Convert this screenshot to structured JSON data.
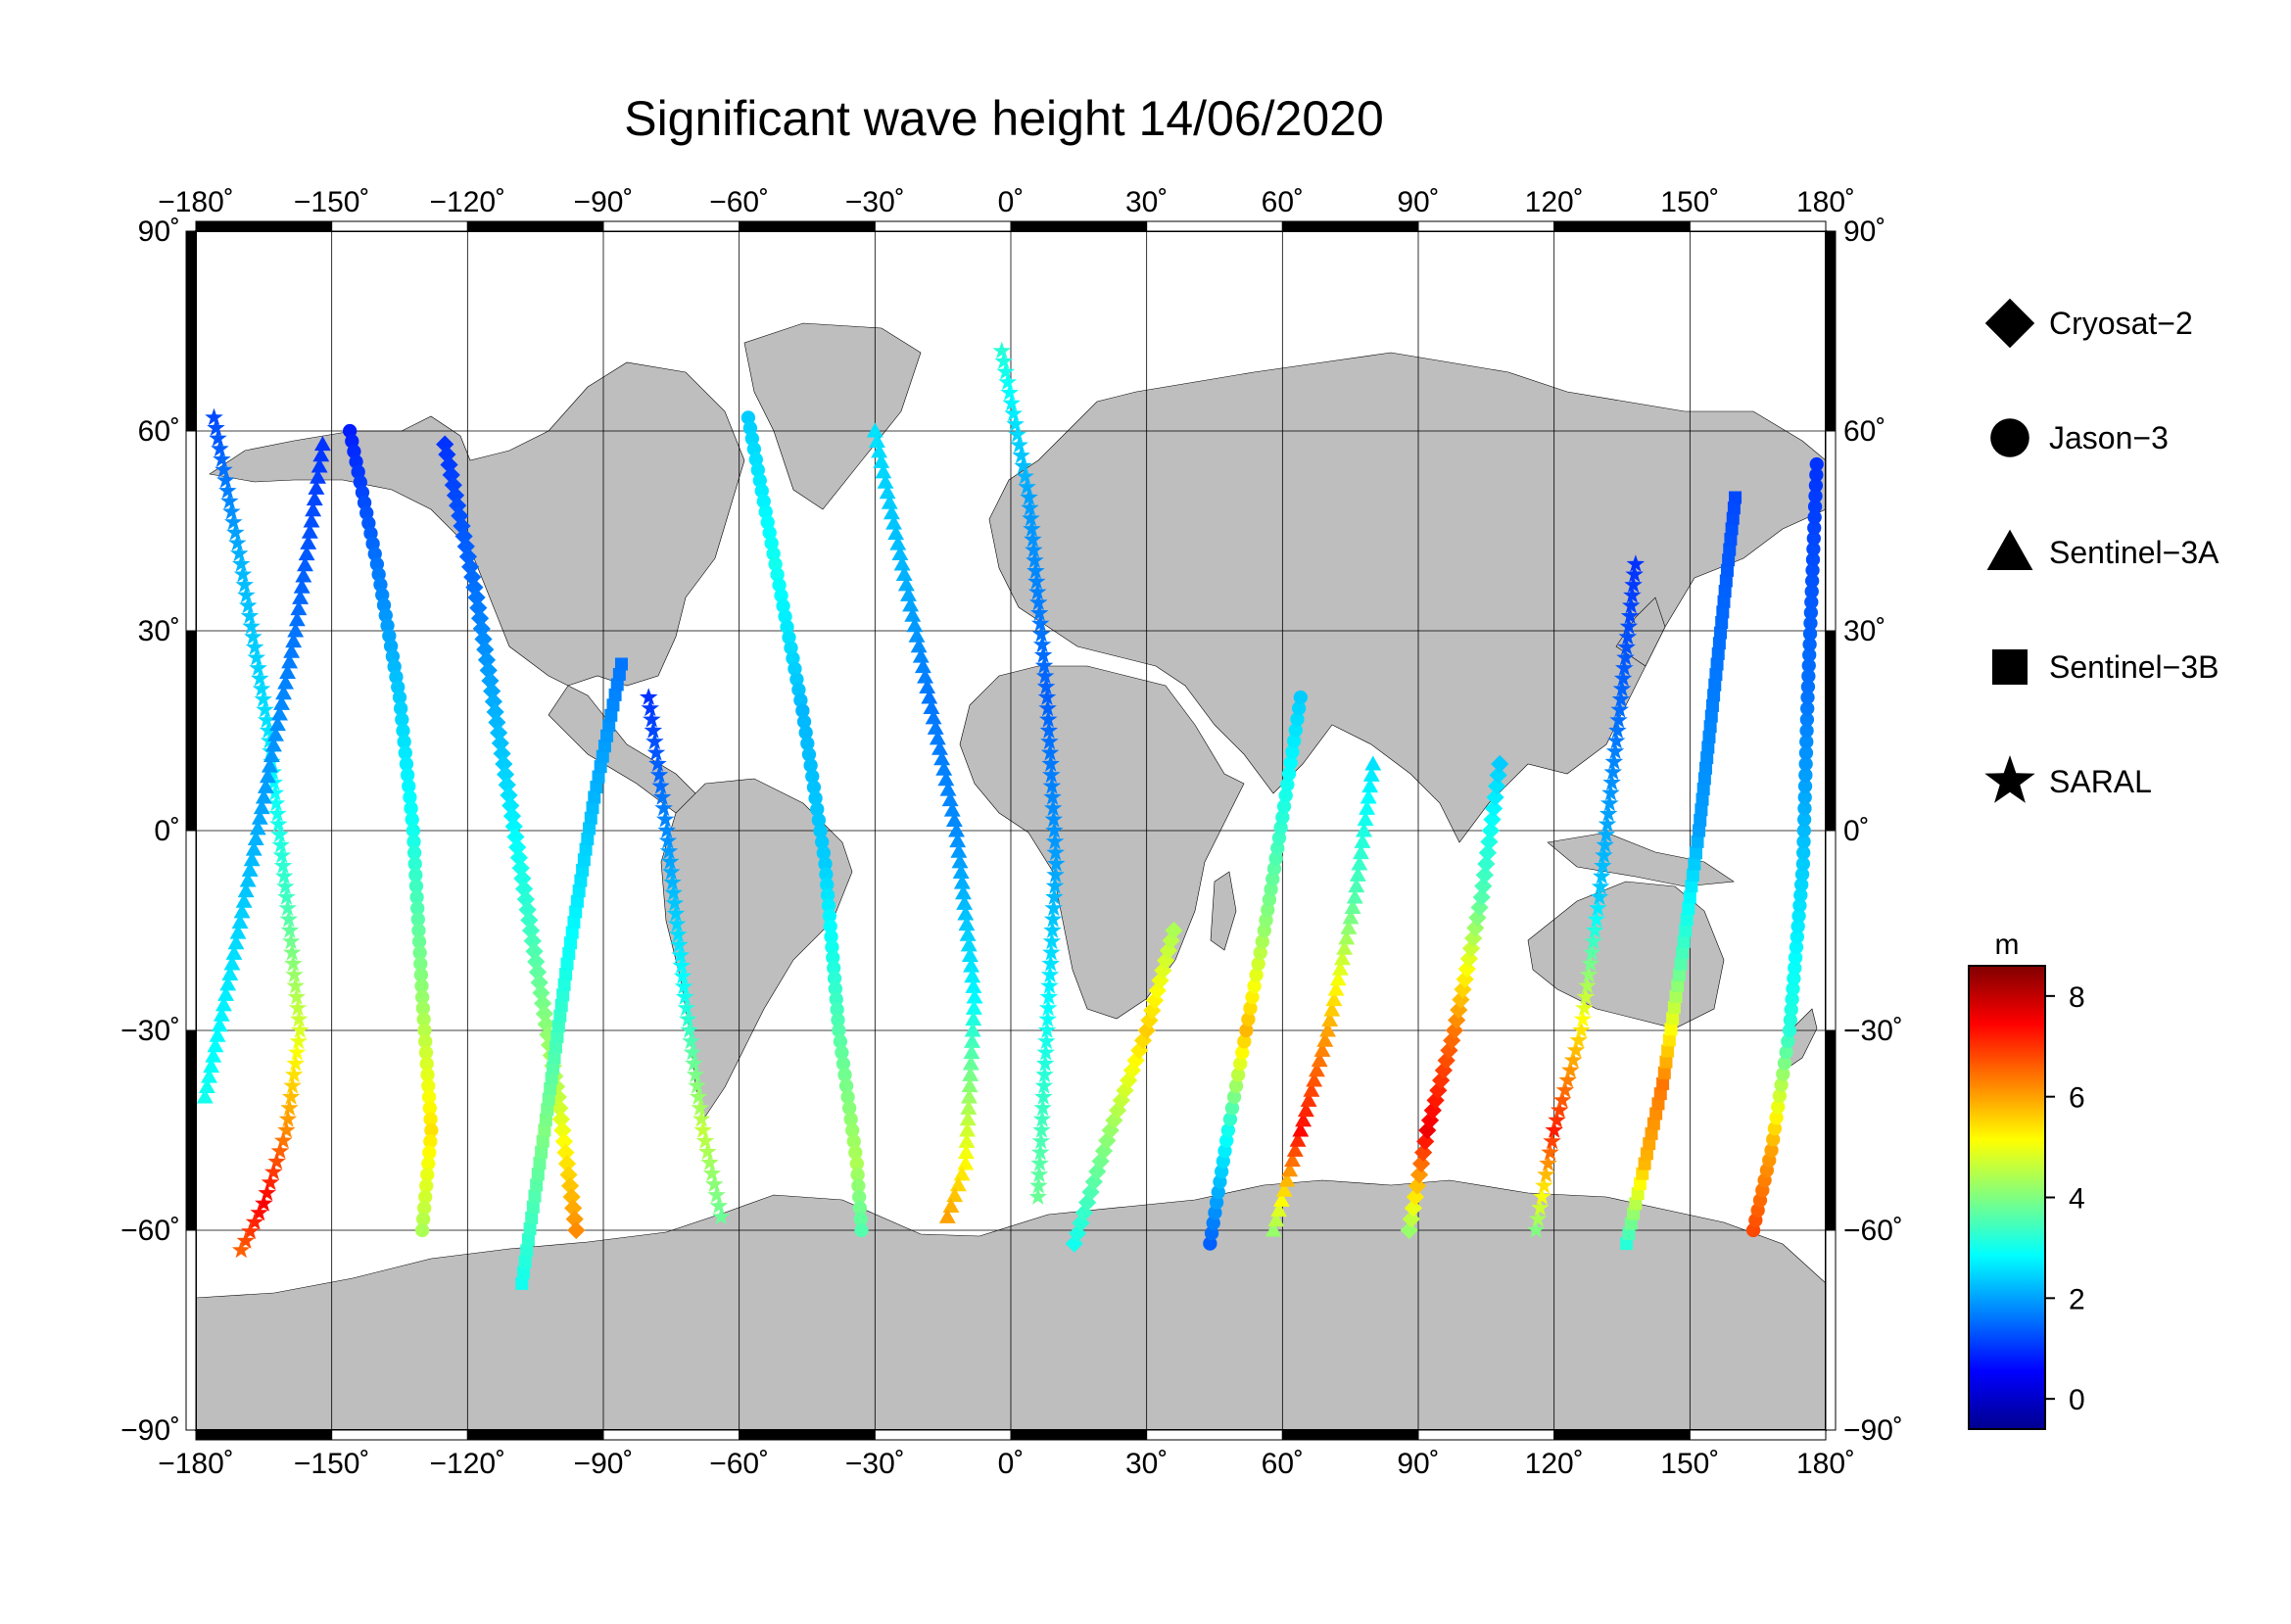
{
  "title": "Significant wave height 14/06/2020",
  "map": {
    "lon_ticks": [
      -180,
      -150,
      -120,
      -90,
      -60,
      -30,
      0,
      30,
      60,
      90,
      120,
      150,
      180
    ],
    "lat_ticks": [
      90,
      60,
      30,
      0,
      -30,
      -60,
      -90
    ],
    "lon_labels": [
      "−180˚",
      "−150˚",
      "−120˚",
      "−90˚",
      "−60˚",
      "−30˚",
      "0˚",
      "30˚",
      "60˚",
      "90˚",
      "120˚",
      "150˚",
      "180˚"
    ],
    "lat_labels_left": [
      "90˚",
      "60˚",
      "30˚",
      "0˚",
      "−30˚",
      "−60˚",
      "−90˚"
    ],
    "lat_labels_right": [
      "90˚",
      "60˚",
      "30˚",
      "0˚",
      "−30˚",
      "−60˚",
      "−90˚"
    ],
    "land_color": "#bebebe",
    "ocean_color": "#ffffff",
    "grid_color": "#000000"
  },
  "legend": {
    "items": [
      {
        "label": "Cryosat−2",
        "symbol": "diamond"
      },
      {
        "label": "Jason−3",
        "symbol": "circle"
      },
      {
        "label": "Sentinel−3A",
        "symbol": "triangle"
      },
      {
        "label": "Sentinel−3B",
        "symbol": "square"
      },
      {
        "label": "SARAL",
        "symbol": "star"
      }
    ]
  },
  "colorbar": {
    "unit": "m",
    "min": -0.6,
    "max": 8.6,
    "ticks": [
      0,
      2,
      4,
      6,
      8
    ],
    "tick_labels": [
      "0",
      "2",
      "4",
      "6",
      "8"
    ],
    "colormap": [
      "#00008f",
      "#0000ff",
      "#0080ff",
      "#00ffff",
      "#80ff80",
      "#ffff00",
      "#ff8000",
      "#ff0000",
      "#800000"
    ]
  },
  "chart_data": {
    "type": "scatter",
    "title": "Significant wave height 14/06/2020",
    "xlabel": "",
    "ylabel": "",
    "xlim": [
      -180,
      180
    ],
    "ylim": [
      -90,
      90
    ],
    "color_variable": "Significant wave height (m)",
    "tracks": [
      {
        "satellite": "SARAL",
        "symbol": "star",
        "points": [
          [
            -176,
            62,
            1.2
          ],
          [
            -170,
            40,
            2.2
          ],
          [
            -164,
            15,
            2.6
          ],
          [
            -160,
            -10,
            3.4
          ],
          [
            -157,
            -30,
            4.8
          ],
          [
            -160,
            -45,
            6.2
          ],
          [
            -165,
            -56,
            7.5
          ],
          [
            -170,
            -63,
            6.6
          ]
        ]
      },
      {
        "satellite": "Sentinel-3A",
        "symbol": "triangle",
        "points": [
          [
            -178,
            -40,
            3.0
          ],
          [
            -172,
            -20,
            2.6
          ],
          [
            -165,
            5,
            2.0
          ],
          [
            -158,
            30,
            1.6
          ],
          [
            -152,
            58,
            1.0
          ]
        ]
      },
      {
        "satellite": "Jason-3",
        "symbol": "circle",
        "points": [
          [
            -146,
            60,
            0.8
          ],
          [
            -140,
            40,
            1.6
          ],
          [
            -135,
            20,
            2.4
          ],
          [
            -132,
            0,
            3.0
          ],
          [
            -130,
            -25,
            4.2
          ],
          [
            -128,
            -45,
            5.4
          ],
          [
            -130,
            -60,
            4.4
          ]
        ]
      },
      {
        "satellite": "Cryosat-2",
        "symbol": "diamond",
        "points": [
          [
            -125,
            58,
            1.0
          ],
          [
            -118,
            35,
            1.6
          ],
          [
            -112,
            10,
            2.4
          ],
          [
            -106,
            -15,
            3.4
          ],
          [
            -100,
            -40,
            4.6
          ],
          [
            -96,
            -60,
            6.2
          ]
        ]
      },
      {
        "satellite": "Sentinel-3B",
        "symbol": "square",
        "points": [
          [
            -108,
            -68,
            3.0
          ],
          [
            -103,
            -45,
            4.0
          ],
          [
            -98,
            -20,
            3.0
          ],
          [
            -92,
            5,
            2.2
          ],
          [
            -86,
            25,
            1.6
          ]
        ]
      },
      {
        "satellite": "SARAL",
        "symbol": "star",
        "points": [
          [
            -80,
            20,
            1.0
          ],
          [
            -76,
            0,
            1.8
          ],
          [
            -72,
            -25,
            3.0
          ],
          [
            -68,
            -45,
            4.6
          ],
          [
            -64,
            -58,
            3.8
          ]
        ]
      },
      {
        "satellite": "Jason-3",
        "symbol": "circle",
        "points": [
          [
            -58,
            62,
            2.4
          ],
          [
            -52,
            40,
            3.0
          ],
          [
            -46,
            18,
            2.2
          ],
          [
            -41,
            -5,
            2.4
          ],
          [
            -38,
            -30,
            3.6
          ],
          [
            -34,
            -50,
            4.4
          ],
          [
            -33,
            -60,
            3.6
          ]
        ]
      },
      {
        "satellite": "Sentinel-3A",
        "symbol": "triangle",
        "points": [
          [
            -30,
            60,
            2.6
          ],
          [
            -24,
            40,
            2.2
          ],
          [
            -18,
            20,
            1.6
          ],
          [
            -12,
            0,
            1.8
          ],
          [
            -8,
            -25,
            2.8
          ],
          [
            -10,
            -50,
            5.2
          ],
          [
            -14,
            -58,
            6.0
          ]
        ]
      },
      {
        "satellite": "SARAL",
        "symbol": "star",
        "points": [
          [
            -2,
            72,
            3.2
          ],
          [
            4,
            50,
            2.0
          ],
          [
            8,
            20,
            1.4
          ],
          [
            10,
            -5,
            2.0
          ],
          [
            8,
            -30,
            3.0
          ],
          [
            6,
            -55,
            3.8
          ]
        ]
      },
      {
        "satellite": "Cryosat-2",
        "symbol": "diamond",
        "points": [
          [
            14,
            -62,
            3.0
          ],
          [
            22,
            -45,
            4.2
          ],
          [
            30,
            -30,
            5.6
          ],
          [
            36,
            -15,
            4.4
          ]
        ]
      },
      {
        "satellite": "Jason-3",
        "symbol": "circle",
        "points": [
          [
            44,
            -62,
            1.4
          ],
          [
            48,
            -45,
            3.0
          ],
          [
            52,
            -30,
            5.8
          ],
          [
            56,
            -15,
            4.2
          ],
          [
            60,
            2,
            3.2
          ],
          [
            64,
            20,
            2.4
          ]
        ]
      },
      {
        "satellite": "Sentinel-3A",
        "symbol": "triangle",
        "points": [
          [
            58,
            -60,
            4.2
          ],
          [
            64,
            -45,
            7.4
          ],
          [
            70,
            -30,
            6.0
          ],
          [
            76,
            -10,
            3.6
          ],
          [
            80,
            10,
            2.6
          ]
        ]
      },
      {
        "satellite": "Cryosat-2",
        "symbol": "diamond",
        "points": [
          [
            88,
            -60,
            4.2
          ],
          [
            92,
            -45,
            7.6
          ],
          [
            98,
            -30,
            6.4
          ],
          [
            104,
            -10,
            3.6
          ],
          [
            108,
            10,
            2.4
          ]
        ]
      },
      {
        "satellite": "SARAL",
        "symbol": "star",
        "points": [
          [
            116,
            -60,
            4.0
          ],
          [
            120,
            -45,
            7.2
          ],
          [
            126,
            -30,
            5.4
          ],
          [
            130,
            -10,
            2.4
          ],
          [
            134,
            15,
            1.6
          ],
          [
            138,
            40,
            1.0
          ]
        ]
      },
      {
        "satellite": "Sentinel-3B",
        "symbol": "square",
        "points": [
          [
            136,
            -62,
            3.2
          ],
          [
            140,
            -50,
            5.8
          ],
          [
            144,
            -38,
            6.4
          ],
          [
            148,
            -20,
            3.6
          ],
          [
            152,
            0,
            2.0
          ],
          [
            156,
            25,
            1.6
          ],
          [
            160,
            50,
            1.2
          ]
        ]
      },
      {
        "satellite": "Jason-3",
        "symbol": "circle",
        "points": [
          [
            164,
            -60,
            6.8
          ],
          [
            168,
            -48,
            6.0
          ],
          [
            172,
            -30,
            3.2
          ],
          [
            175,
            -5,
            2.4
          ],
          [
            176,
            20,
            1.6
          ],
          [
            178,
            55,
            1.0
          ]
        ]
      }
    ]
  }
}
